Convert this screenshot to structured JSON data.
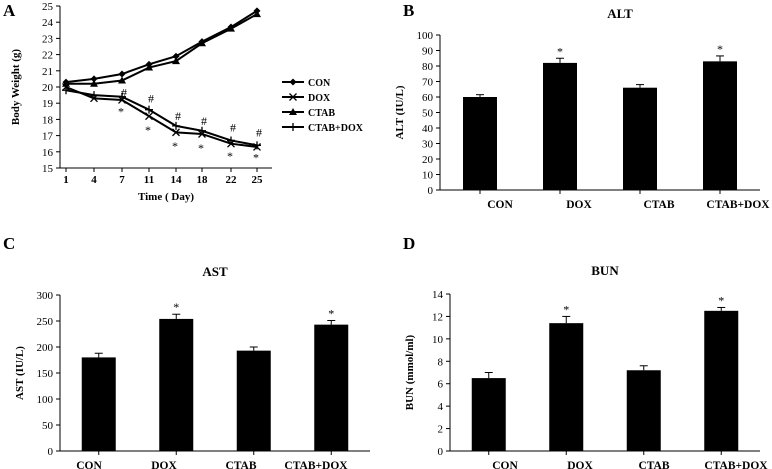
{
  "chart_data": [
    {
      "panel": "A",
      "type": "line",
      "title": "",
      "xlabel": "Time ( Day)",
      "ylabel": "Body Weight (g)",
      "x": [
        1,
        4,
        7,
        11,
        14,
        18,
        22,
        25
      ],
      "ylim": [
        15,
        25
      ],
      "yticks": [
        15,
        16,
        17,
        18,
        19,
        20,
        21,
        22,
        23,
        24,
        25
      ],
      "series": [
        {
          "name": "CON",
          "marker": "diamond",
          "values": [
            20.3,
            20.5,
            20.8,
            21.4,
            21.9,
            22.8,
            23.7,
            24.7
          ]
        },
        {
          "name": "DOX",
          "marker": "x",
          "values": [
            20.0,
            19.3,
            19.2,
            18.2,
            17.2,
            17.1,
            16.5,
            16.3
          ]
        },
        {
          "name": "CTAB",
          "marker": "triangle",
          "values": [
            20.2,
            20.2,
            20.4,
            21.2,
            21.6,
            22.7,
            23.6,
            24.5
          ]
        },
        {
          "name": "CTAB+DOX",
          "marker": "plus",
          "values": [
            19.8,
            19.5,
            19.4,
            18.6,
            17.6,
            17.3,
            16.7,
            16.4
          ]
        }
      ],
      "annotations": [
        {
          "x": 7,
          "y": 19.65,
          "text": "#"
        },
        {
          "x": 7,
          "y": 18.5,
          "text": "*"
        },
        {
          "x": 11,
          "y": 19.3,
          "text": "#"
        },
        {
          "x": 11,
          "y": 17.35,
          "text": "*"
        },
        {
          "x": 14,
          "y": 18.2,
          "text": "#"
        },
        {
          "x": 14,
          "y": 16.35,
          "text": "*"
        },
        {
          "x": 18,
          "y": 17.9,
          "text": "#"
        },
        {
          "x": 18,
          "y": 16.25,
          "text": "*"
        },
        {
          "x": 22,
          "y": 17.5,
          "text": "#"
        },
        {
          "x": 22,
          "y": 15.75,
          "text": "*"
        },
        {
          "x": 25,
          "y": 17.2,
          "text": "#"
        },
        {
          "x": 25,
          "y": 15.65,
          "text": "*"
        }
      ]
    },
    {
      "panel": "B",
      "type": "bar",
      "title": "ALT",
      "ylabel": "ALT (IU/L)",
      "ylim": [
        0,
        100
      ],
      "yticks": [
        0,
        10,
        20,
        30,
        40,
        50,
        60,
        70,
        80,
        90,
        100
      ],
      "categories": [
        "CON",
        "DOX",
        "CTAB",
        "CTAB+DOX"
      ],
      "values": [
        60,
        82,
        66,
        83
      ],
      "errors": [
        1.5,
        3,
        2,
        3.5
      ],
      "significance": [
        "",
        "*",
        "",
        "*"
      ]
    },
    {
      "panel": "C",
      "type": "bar",
      "title": "AST",
      "ylabel": "AST (IU/L)",
      "ylim": [
        0,
        300
      ],
      "yticks": [
        0,
        50,
        100,
        150,
        200,
        250,
        300
      ],
      "categories": [
        "CON",
        "DOX",
        "CTAB",
        "CTAB+DOX"
      ],
      "values": [
        180,
        254,
        193,
        243
      ],
      "errors": [
        8,
        9,
        7,
        8
      ],
      "significance": [
        "",
        "*",
        "",
        "*"
      ]
    },
    {
      "panel": "D",
      "type": "bar",
      "title": "BUN",
      "ylabel": "BUN (mmol/ml)",
      "ylim": [
        0,
        14
      ],
      "yticks": [
        0,
        2,
        4,
        6,
        8,
        10,
        12,
        14
      ],
      "categories": [
        "CON",
        "DOX",
        "CTAB",
        "CTAB+DOX"
      ],
      "values": [
        6.5,
        11.4,
        7.2,
        12.5
      ],
      "errors": [
        0.5,
        0.6,
        0.4,
        0.3
      ],
      "significance": [
        "",
        "*",
        "",
        "*"
      ]
    }
  ]
}
